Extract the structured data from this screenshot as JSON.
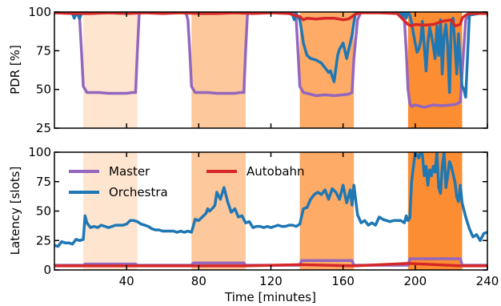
{
  "chart_data": [
    {
      "type": "line",
      "panel": "top",
      "ylabel": "PDR [%]",
      "ylim": [
        25,
        100
      ],
      "yticks": [
        25,
        50,
        75,
        100
      ],
      "xlim": [
        0,
        240
      ],
      "xticks": [
        40,
        80,
        120,
        160,
        200,
        240
      ],
      "shaded_intervals": [
        {
          "x": [
            16,
            46
          ],
          "color": "#fde5d0"
        },
        {
          "x": [
            76,
            106
          ],
          "color": "#fdc89b"
        },
        {
          "x": [
            136,
            166
          ],
          "color": "#fdab67"
        },
        {
          "x": [
            196,
            226
          ],
          "color": "#fd8d32"
        }
      ],
      "series": [
        {
          "name": "Master",
          "color": "#9467bd",
          "x": [
            0,
            10,
            13,
            14,
            15,
            16,
            18,
            20,
            25,
            30,
            35,
            40,
            43,
            45,
            46,
            47,
            50,
            60,
            70,
            73,
            74,
            75,
            76,
            78,
            80,
            85,
            90,
            95,
            100,
            103,
            105,
            106,
            107,
            110,
            120,
            130,
            133,
            134,
            135,
            136,
            138,
            140,
            145,
            150,
            155,
            160,
            163,
            165,
            166,
            168,
            170,
            180,
            190,
            193,
            194,
            195,
            196,
            197,
            198,
            200,
            205,
            210,
            215,
            220,
            223,
            225,
            226,
            228,
            230,
            240
          ],
          "values": [
            100,
            100,
            99,
            95,
            75,
            52,
            48,
            48,
            48,
            47.5,
            47.5,
            47.5,
            48,
            48,
            75,
            99,
            100,
            100,
            100,
            99,
            95,
            75,
            52,
            48,
            48,
            48,
            47.5,
            47.5,
            47.5,
            48,
            48,
            75,
            99,
            100,
            100,
            100,
            99,
            95,
            75,
            52,
            48,
            47.5,
            46,
            46.5,
            46,
            46.5,
            47,
            48,
            70,
            95,
            100,
            100,
            100,
            99,
            95,
            75,
            50,
            41,
            39,
            40,
            38.5,
            40,
            39.5,
            40,
            40.5,
            42,
            60,
            95,
            100,
            100
          ]
        },
        {
          "name": "Orchestra",
          "color": "#1f77b4",
          "x": [
            0,
            5,
            10,
            11,
            12,
            13,
            14,
            15,
            40,
            46,
            47,
            50,
            60,
            70,
            80,
            90,
            100,
            106,
            107,
            110,
            120,
            130,
            131,
            132,
            133,
            134,
            135,
            136,
            137,
            138,
            140,
            142,
            145,
            148,
            150,
            152,
            153,
            155,
            157,
            158,
            160,
            162,
            165,
            166,
            167,
            170,
            180,
            190,
            192,
            193,
            194,
            195,
            196,
            197,
            198,
            199,
            200,
            201,
            202,
            203,
            204,
            205,
            206,
            207,
            208,
            209,
            210,
            211,
            212,
            213,
            214,
            215,
            216,
            217,
            218,
            219,
            220,
            221,
            222,
            223,
            224,
            225,
            226,
            227,
            228,
            230,
            240
          ],
          "values": [
            100,
            100,
            99,
            96,
            99,
            98,
            96,
            99,
            100,
            100,
            100,
            100,
            100,
            100,
            100,
            100,
            100,
            100,
            100,
            100,
            100,
            100,
            100,
            98,
            95,
            99,
            97,
            95,
            88,
            80,
            72,
            70,
            69,
            67,
            64,
            61,
            62,
            55,
            72,
            76,
            80,
            70,
            85,
            93,
            100,
            100,
            100,
            100,
            99,
            97,
            100,
            96,
            100,
            98,
            93,
            86,
            80,
            74,
            76,
            81,
            94,
            78,
            62,
            80,
            90,
            85,
            78,
            70,
            91,
            72,
            95,
            60,
            85,
            92,
            78,
            48,
            93,
            96,
            79,
            60,
            86,
            66,
            52,
            50,
            45,
            98,
            100
          ]
        },
        {
          "name": "Autobahn",
          "color": "#d62728",
          "x": [
            0,
            10,
            20,
            30,
            40,
            50,
            60,
            70,
            80,
            90,
            100,
            110,
            120,
            130,
            136,
            138,
            140,
            145,
            150,
            155,
            160,
            163,
            165,
            166,
            168,
            170,
            180,
            190,
            196,
            198,
            200,
            205,
            210,
            215,
            220,
            222,
            225,
            226,
            228,
            230,
            240
          ],
          "values": [
            99.5,
            99,
            99,
            99.5,
            99,
            99.5,
            99,
            99.5,
            99,
            99,
            99.5,
            99,
            99.5,
            99,
            97,
            95,
            96,
            95.5,
            96,
            96,
            95,
            95.5,
            97,
            98,
            99,
            99.5,
            99.5,
            99,
            92,
            91,
            92,
            91.5,
            92,
            94,
            95,
            91,
            92,
            96,
            98,
            99,
            99
          ]
        }
      ]
    },
    {
      "type": "line",
      "panel": "bottom",
      "xlabel": "Time [minutes]",
      "ylabel": "Latency [slots]",
      "ylim": [
        0,
        100
      ],
      "yticks": [
        0,
        25,
        50,
        75,
        100
      ],
      "xlim": [
        0,
        240
      ],
      "xticks": [
        40,
        80,
        120,
        160,
        200,
        240
      ],
      "xtick_labels": [
        "40",
        "80",
        "120",
        "160",
        "200",
        "240"
      ],
      "legend": {
        "placement": "top-left",
        "entries": [
          "Master",
          "Orchestra",
          "Autobahn"
        ]
      },
      "shaded_intervals": [
        {
          "x": [
            16,
            46
          ],
          "color": "#fde5d0"
        },
        {
          "x": [
            76,
            106
          ],
          "color": "#fdc89b"
        },
        {
          "x": [
            136,
            166
          ],
          "color": "#fdab67"
        },
        {
          "x": [
            196,
            226
          ],
          "color": "#fd8d32"
        }
      ],
      "series": [
        {
          "name": "Master",
          "color": "#9467bd",
          "x": [
            0,
            16,
            17,
            45,
            46,
            76,
            77,
            105,
            106,
            136,
            137,
            165,
            166,
            196,
            197,
            225,
            226,
            240
          ],
          "values": [
            4,
            4,
            5,
            5,
            4,
            4,
            6,
            6,
            4,
            4,
            8,
            8,
            4,
            4,
            9.5,
            9.5,
            4,
            4
          ]
        },
        {
          "name": "Orchestra",
          "color": "#1f77b4",
          "x": [
            0,
            2,
            4,
            6,
            8,
            10,
            12,
            14,
            16,
            17,
            18,
            20,
            22,
            24,
            26,
            28,
            30,
            32,
            34,
            36,
            38,
            40,
            42,
            44,
            46,
            48,
            50,
            52,
            54,
            56,
            58,
            60,
            62,
            64,
            66,
            68,
            70,
            72,
            74,
            76,
            78,
            80,
            82,
            84,
            85,
            86,
            88,
            89,
            90,
            92,
            94,
            96,
            98,
            100,
            102,
            104,
            106,
            108,
            110,
            112,
            114,
            116,
            118,
            120,
            122,
            124,
            126,
            128,
            130,
            132,
            134,
            136,
            138,
            140,
            142,
            144,
            146,
            148,
            150,
            152,
            154,
            156,
            158,
            160,
            162,
            164,
            165,
            166,
            168,
            170,
            172,
            174,
            176,
            178,
            180,
            182,
            184,
            186,
            188,
            190,
            192,
            194,
            195,
            196,
            197,
            198,
            200,
            202,
            203,
            204,
            205,
            206,
            207,
            208,
            209,
            210,
            211,
            212,
            213,
            214,
            215,
            216,
            217,
            218,
            219,
            220,
            222,
            223,
            224,
            225,
            226,
            228,
            230,
            232,
            234,
            236,
            238,
            240
          ],
          "values": [
            21,
            20,
            24,
            23,
            23,
            22,
            26,
            25,
            26,
            46,
            40,
            36,
            37,
            36,
            38,
            37,
            36,
            37,
            38,
            38,
            38,
            39,
            42,
            42,
            41,
            39,
            38,
            37,
            35,
            34,
            34,
            33,
            33,
            33,
            33,
            32,
            33,
            32,
            33,
            32,
            43,
            42,
            45,
            48,
            52,
            50,
            53,
            55,
            66,
            60,
            70,
            58,
            49,
            52,
            45,
            46,
            40,
            41,
            36,
            37,
            37,
            36,
            37,
            36,
            37,
            38,
            37,
            37,
            38,
            38,
            37,
            39,
            52,
            53,
            60,
            64,
            66,
            64,
            68,
            60,
            69,
            66,
            60,
            72,
            57,
            68,
            55,
            72,
            47,
            40,
            42,
            38,
            40,
            38,
            45,
            43,
            42,
            41,
            42,
            42,
            42,
            40,
            46,
            42,
            44,
            75,
            100,
            95,
            100,
            98,
            80,
            88,
            72,
            85,
            80,
            88,
            83,
            100,
            70,
            65,
            88,
            100,
            70,
            80,
            92,
            88,
            75,
            62,
            58,
            72,
            57,
            45,
            35,
            28,
            30,
            25,
            31,
            32
          ]
        },
        {
          "name": "Autobahn",
          "color": "#d62728",
          "x": [
            0,
            16,
            46,
            76,
            106,
            136,
            166,
            196,
            226,
            240
          ],
          "values": [
            3.5,
            3.5,
            3.5,
            3.5,
            3.5,
            4.5,
            3.5,
            5.5,
            3.5,
            3.5
          ]
        }
      ]
    }
  ]
}
